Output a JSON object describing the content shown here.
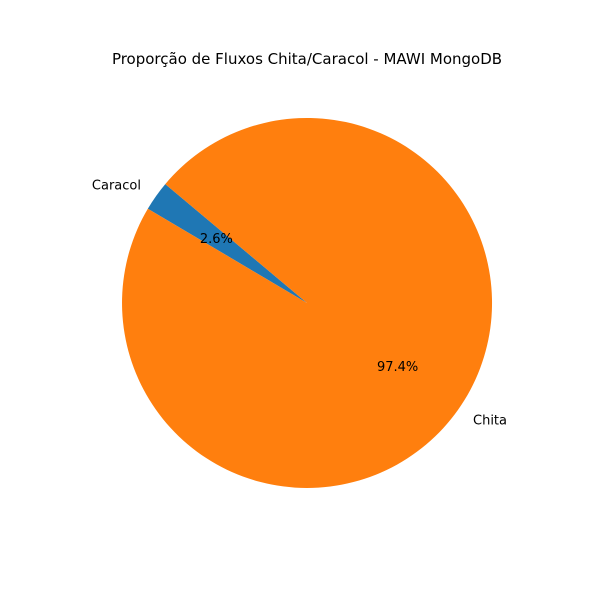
{
  "chart_data": {
    "type": "pie",
    "title": "Proporção de Fluxos Chita/Caracol - MAWI MongoDB",
    "slices": [
      {
        "label": "Caracol",
        "value": 2.6,
        "pct_label": "2.6%",
        "color": "#1f77b4"
      },
      {
        "label": "Chita",
        "value": 97.4,
        "pct_label": "97.4%",
        "color": "#ff7f0e"
      }
    ],
    "start_angle_deg": 140,
    "direction": "counterclockwise"
  }
}
